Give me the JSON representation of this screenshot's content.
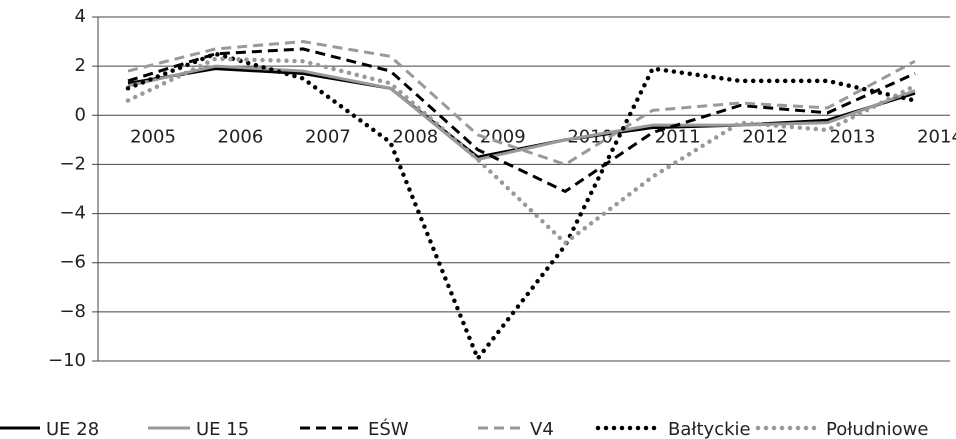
{
  "chart_data": {
    "type": "line",
    "categories": [
      "2005",
      "2006",
      "2007",
      "2008",
      "2009",
      "2010",
      "2011",
      "2012",
      "2013",
      "2014"
    ],
    "ylim": [
      -10,
      4
    ],
    "yticks": [
      {
        "value": -10,
        "label": "−10"
      },
      {
        "value": -8,
        "label": "−8"
      },
      {
        "value": -6,
        "label": "−6"
      },
      {
        "value": -4,
        "label": "−4"
      },
      {
        "value": -2,
        "label": "−2"
      },
      0,
      2,
      4
    ],
    "grid": true,
    "legend": "bottom",
    "series": [
      {
        "name": "UE 28",
        "color": "#000000",
        "dash": "solid",
        "values": [
          1.3,
          1.9,
          1.7,
          1.1,
          -1.7,
          -1.0,
          -0.5,
          -0.4,
          -0.2,
          0.9
        ]
      },
      {
        "name": "UE 15",
        "color": "#999999",
        "dash": "solid",
        "values": [
          1.2,
          2.0,
          1.8,
          1.1,
          -1.8,
          -1.0,
          -0.4,
          -0.4,
          -0.3,
          1.0
        ]
      },
      {
        "name": "EŚW",
        "color": "#000000",
        "dash": "dashed",
        "values": [
          1.4,
          2.5,
          2.7,
          1.8,
          -1.4,
          -3.1,
          -0.7,
          0.4,
          0.1,
          1.7
        ]
      },
      {
        "name": "V4",
        "color": "#999999",
        "dash": "dashed",
        "values": [
          1.8,
          2.7,
          3.0,
          2.4,
          -0.8,
          -2.0,
          0.2,
          0.5,
          0.3,
          2.2
        ]
      },
      {
        "name": "Bałtyckie",
        "color": "#000000",
        "dash": "dotted",
        "values": [
          1.1,
          2.5,
          1.5,
          -1.1,
          -9.9,
          -5.3,
          1.9,
          1.4,
          1.4,
          0.6
        ]
      },
      {
        "name": "Południowe",
        "color": "#999999",
        "dash": "dotted",
        "values": [
          0.6,
          2.3,
          2.2,
          1.3,
          -1.8,
          -5.2,
          -2.5,
          -0.3,
          -0.6,
          1.2
        ]
      }
    ]
  }
}
